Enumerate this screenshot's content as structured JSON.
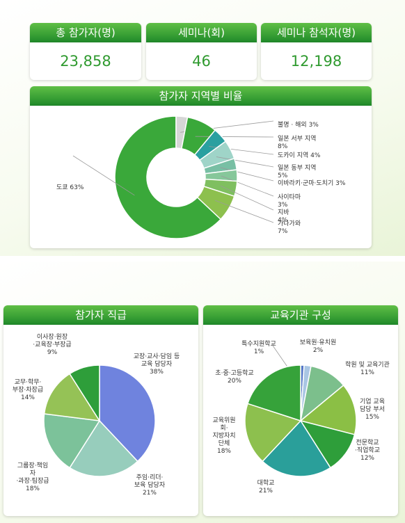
{
  "stats": [
    {
      "label": "총 참가자(명)",
      "value": "23,858"
    },
    {
      "label": "세미나(회)",
      "value": "46"
    },
    {
      "label": "세미나 참석자(명)",
      "value": "12,198"
    }
  ],
  "chart_data": [
    {
      "type": "pie",
      "title": "참가자 지역별 비율",
      "donut": true,
      "categories": [
        "도쿄",
        "불명 · 해외",
        "일본 서부 지역",
        "도카이 지역",
        "일본 동부 지역",
        "이바라키·군마·도치기",
        "사이타마",
        "지바",
        "가나가와"
      ],
      "values": [
        63,
        3,
        8,
        4,
        5,
        3,
        3,
        4,
        7
      ],
      "labels": [
        "도쿄 63%",
        "불명 · 해외 3%",
        "일본 서부 지역\n8%",
        "도카이 지역 4%",
        "일본 동부 지역\n5%",
        "이바라키·군마·도치기 3%",
        "사이타마\n3%",
        "지바\n4%",
        "가나가와\n7%"
      ],
      "colors": [
        "#3aa83a",
        "#d6d6d6",
        "#3aa83a",
        "#2aa0a0",
        "#9fd4c8",
        "#78bfa4",
        "#86c79a",
        "#7fbf60",
        "#8dc04e"
      ]
    },
    {
      "type": "pie",
      "title": "참가자 직급",
      "categories": [
        "교장·교사·담임 등 교육 담당자",
        "주임·리더·보육 담당자",
        "그룹장·책임자·과장·팀장급",
        "교무·학무·부장·차장급",
        "이사장·원장·교육장·부장급"
      ],
      "values": [
        38,
        21,
        18,
        14,
        9
      ],
      "labels": [
        "교장·교사·담임 등\n교육 담당자\n38%",
        "주임·리더·\n보육 담당자\n21%",
        "그룹장·책임\n자\n·과장·팀장급\n18%",
        "교무·학무·\n부장·차장급\n14%",
        "이사장·원장\n·교육장·부장급\n9%"
      ],
      "colors": [
        "#6f83de",
        "#97cdbc",
        "#7cc29a",
        "#95c256",
        "#2e9e3a"
      ]
    },
    {
      "type": "pie",
      "title": "교육기관 구성",
      "categories": [
        "특수지원학교",
        "보육원·유치원",
        "학원 및 교육기관",
        "기업 교육 담당 부서",
        "전문학교·직업학교",
        "대학교",
        "교육위원회·지방자치단체",
        "초·중·고등학교"
      ],
      "values": [
        1,
        2,
        11,
        15,
        12,
        21,
        18,
        20
      ],
      "labels": [
        "특수지원학교\n1%",
        "보육원·유치원\n2%",
        "학원 및 교육기관\n11%",
        "기업 교육\n담당 부서\n15%",
        "전문학교\n·직업학교\n12%",
        "대학교\n21%",
        "교육위원\n회·\n지방자치\n단체\n18%",
        "초·중·고등학교\n20%"
      ],
      "colors": [
        "#5577c6",
        "#a9c6e3",
        "#7cbf8c",
        "#8bbf45",
        "#2e9e3a",
        "#2a9f9a",
        "#8dc04e",
        "#36a23a"
      ]
    }
  ]
}
